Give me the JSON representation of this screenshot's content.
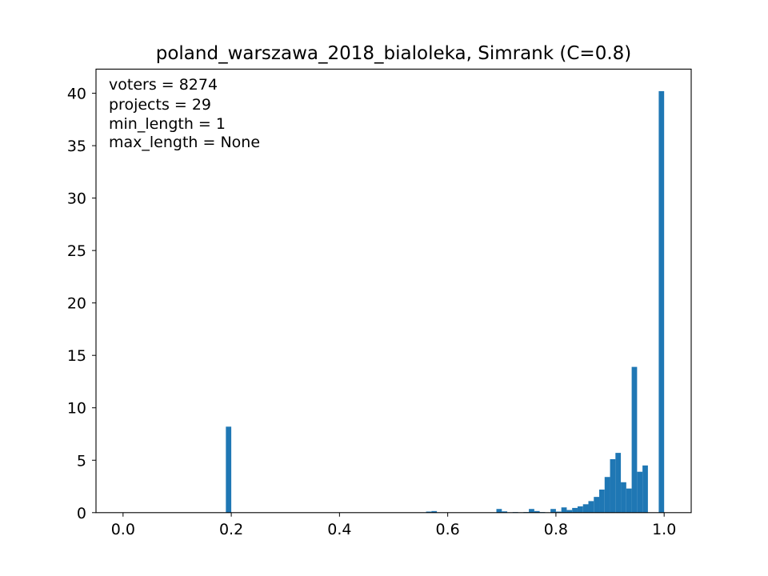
{
  "chart_data": {
    "type": "bar",
    "title": "poland_warszawa_2018_bialoleka, Simrank (C=0.8)",
    "xlabel": "",
    "ylabel": "",
    "xlim": [
      -0.05,
      1.05
    ],
    "ylim": [
      0,
      42.3
    ],
    "xticks": [
      "0.0",
      "0.2",
      "0.4",
      "0.6",
      "0.8",
      "1.0"
    ],
    "xtick_values": [
      0.0,
      0.2,
      0.4,
      0.6,
      0.8,
      1.0
    ],
    "yticks": [
      "0",
      "5",
      "10",
      "15",
      "20",
      "25",
      "30",
      "35",
      "40"
    ],
    "ytick_values": [
      0,
      5,
      10,
      15,
      20,
      25,
      30,
      35,
      40
    ],
    "bin_width": 0.01,
    "bar_color": "#1f77b4",
    "annotation_lines": [
      "voters = 8274",
      "projects = 29",
      "min_length = 1",
      "max_length = None"
    ],
    "bins": [
      {
        "x": 0.19,
        "value": 8.2
      },
      {
        "x": 0.56,
        "value": 0.1
      },
      {
        "x": 0.57,
        "value": 0.15
      },
      {
        "x": 0.69,
        "value": 0.35
      },
      {
        "x": 0.7,
        "value": 0.12
      },
      {
        "x": 0.72,
        "value": 0.05
      },
      {
        "x": 0.74,
        "value": 0.05
      },
      {
        "x": 0.75,
        "value": 0.35
      },
      {
        "x": 0.76,
        "value": 0.15
      },
      {
        "x": 0.77,
        "value": 0.05
      },
      {
        "x": 0.79,
        "value": 0.35
      },
      {
        "x": 0.8,
        "value": 0.1
      },
      {
        "x": 0.81,
        "value": 0.5
      },
      {
        "x": 0.82,
        "value": 0.25
      },
      {
        "x": 0.83,
        "value": 0.45
      },
      {
        "x": 0.84,
        "value": 0.6
      },
      {
        "x": 0.85,
        "value": 0.8
      },
      {
        "x": 0.86,
        "value": 1.1
      },
      {
        "x": 0.87,
        "value": 1.5
      },
      {
        "x": 0.88,
        "value": 2.2
      },
      {
        "x": 0.89,
        "value": 3.4
      },
      {
        "x": 0.9,
        "value": 5.1
      },
      {
        "x": 0.91,
        "value": 5.7
      },
      {
        "x": 0.92,
        "value": 2.9
      },
      {
        "x": 0.93,
        "value": 2.3
      },
      {
        "x": 0.94,
        "value": 13.9
      },
      {
        "x": 0.95,
        "value": 3.9
      },
      {
        "x": 0.96,
        "value": 4.5
      },
      {
        "x": 0.99,
        "value": 40.2
      }
    ]
  }
}
